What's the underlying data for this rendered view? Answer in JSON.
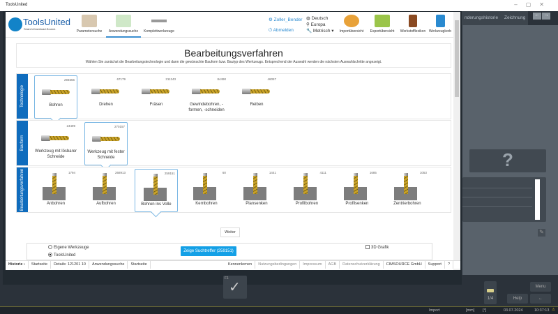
{
  "window": {
    "title": "ToolsUnited"
  },
  "header": {
    "logo": {
      "name": "ToolsUnited",
      "tagline": "Search.Download.Source."
    },
    "nav": [
      {
        "label": "Parametersuche",
        "icon": "parameter-search-icon"
      },
      {
        "label": "Anwendungssuche",
        "icon": "application-search-icon",
        "active": true
      },
      {
        "label": "Komplettwerkzeuge",
        "icon": "complete-tool-icon"
      }
    ],
    "user": "Zoller_Bender",
    "logout": "Abmelden",
    "language": "Deutsch",
    "region": "Europa",
    "units": "Metrisch",
    "tools": [
      {
        "label": "Importübersicht",
        "icon": "import-icon"
      },
      {
        "label": "Exportübersicht",
        "icon": "export-icon"
      },
      {
        "label": "Werkstofflexikon",
        "icon": "book-icon"
      },
      {
        "label": "Werkzeugkorb",
        "icon": "clipboard-icon"
      }
    ]
  },
  "intro": {
    "title": "Bearbeitungsverfahren",
    "text": "Wählen Sie zunächst die Bearbeitungstechnologie und dann die gewünschte Bauform bzw. Bautyp des Werkzeugs. Entsprechend der Auswahl werden die nächsten Auswahlschritte angezeigt."
  },
  "sections": [
    {
      "label": "Technologie",
      "items": [
        {
          "label": "Bohren",
          "count": "294656",
          "selected": true
        },
        {
          "label": "Drehen",
          "count": "67179"
        },
        {
          "label": "Fräsen",
          "count": "211243"
        },
        {
          "label": "Gewindebohren, -formen, -schneiden",
          "count": "84490"
        },
        {
          "label": "Reiben",
          "count": "46057"
        }
      ]
    },
    {
      "label": "Bauform",
      "items": [
        {
          "label": "Werkzeug mit lösbarer Schneide",
          "count": "24499"
        },
        {
          "label": "Werkzeug mit fester Schneide",
          "count": "270157",
          "selected": true
        }
      ]
    },
    {
      "label": "Bearbeitungsverfahren",
      "items": [
        {
          "label": "Anbohren",
          "count": "1794"
        },
        {
          "label": "Aufbohren",
          "count": "268913"
        },
        {
          "label": "Bohren ins Volle",
          "count": "259151",
          "selected": true
        },
        {
          "label": "Kernbohren",
          "count": "60"
        },
        {
          "label": "Plansenken",
          "count": "1441"
        },
        {
          "label": "Profilbohren",
          "count": "4111"
        },
        {
          "label": "Profilsenken",
          "count": "1685"
        },
        {
          "label": "Zentrierbohren",
          "count": "1053"
        }
      ]
    }
  ],
  "weiter": "Weiter",
  "options": {
    "own": "Eigene Werkzeuge",
    "tu": "ToolsUnited",
    "selected": "ToolsUnited",
    "search": "Zeige Suchtreffer (259151)",
    "grafik": "3D Grafik",
    "grafik_checked": false
  },
  "footer": {
    "left": [
      "Historie ›",
      "Startseite",
      "Details: 121201 10",
      "Anwendungssuche",
      "Startseite"
    ],
    "right": [
      "Kennenlernen",
      "Nutzungsbedingungen",
      "Impressum",
      "AGB",
      "Datenschutzerklärung",
      "CIMSOURCE GmbH",
      "Support",
      "?"
    ]
  },
  "app": {
    "tabs": [
      "nderungshistorie",
      "Zeichnung"
    ],
    "f1": "F1",
    "menu": "Menu",
    "help": "Help",
    "page": "1/4",
    "back": "←"
  },
  "status": {
    "mode": "Import",
    "unit1": "[mm]",
    "unit2": "[°]",
    "date": "03.07.2024",
    "time": "10:37:13"
  },
  "colors": {
    "accent": "#0f6cbd",
    "button": "#14a0e6",
    "app_bg": "#2b323a"
  }
}
